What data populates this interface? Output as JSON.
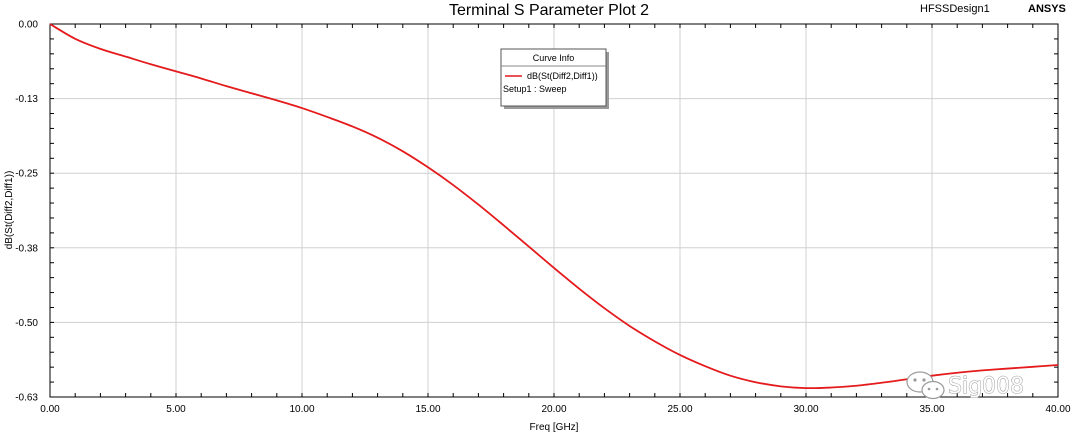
{
  "header": {
    "title": "Terminal S Parameter Plot 2",
    "design_name": "HFSSDesign1",
    "brand": "ANSYS"
  },
  "legend": {
    "title": "Curve Info",
    "entry": "dB(St(Diff2,Diff1))",
    "setup": "Setup1 : Sweep",
    "color": "#e41a1c"
  },
  "watermark": {
    "text": "Sig008",
    "icon": "wechat-icon"
  },
  "chart_data": {
    "type": "line",
    "title": "Terminal S Parameter Plot 2",
    "xlabel": "Freq [GHz]",
    "ylabel": "dB(St(Diff2,Diff1))",
    "xlim": [
      0,
      40
    ],
    "ylim": [
      -0.63,
      0.0
    ],
    "x_ticks": [
      "0.00",
      "5.00",
      "10.00",
      "15.00",
      "20.00",
      "25.00",
      "30.00",
      "35.00",
      "40.00"
    ],
    "y_ticks": [
      "0.00",
      "-0.13",
      "-0.25",
      "-0.38",
      "-0.50",
      "-0.63"
    ],
    "grid": true,
    "legend_position": "top-center",
    "series": [
      {
        "name": "dB(St(Diff2,Diff1))",
        "color": "#e41a1c",
        "x": [
          0,
          1,
          2,
          3,
          4,
          5,
          6,
          7,
          8,
          9,
          10,
          11,
          12,
          13,
          14,
          15,
          16,
          17,
          18,
          19,
          20,
          21,
          22,
          23,
          24,
          25,
          26,
          27,
          28,
          29,
          30,
          31,
          32,
          33,
          34,
          35,
          36,
          37,
          38,
          39,
          40
        ],
        "y": [
          0.0,
          -0.025,
          -0.042,
          -0.055,
          -0.068,
          -0.08,
          -0.092,
          -0.105,
          -0.117,
          -0.129,
          -0.142,
          -0.157,
          -0.173,
          -0.192,
          -0.215,
          -0.242,
          -0.272,
          -0.305,
          -0.34,
          -0.376,
          -0.412,
          -0.447,
          -0.48,
          -0.51,
          -0.536,
          -0.559,
          -0.578,
          -0.594,
          -0.605,
          -0.612,
          -0.615,
          -0.614,
          -0.611,
          -0.606,
          -0.6,
          -0.594,
          -0.589,
          -0.585,
          -0.582,
          -0.579,
          -0.576
        ]
      }
    ]
  }
}
